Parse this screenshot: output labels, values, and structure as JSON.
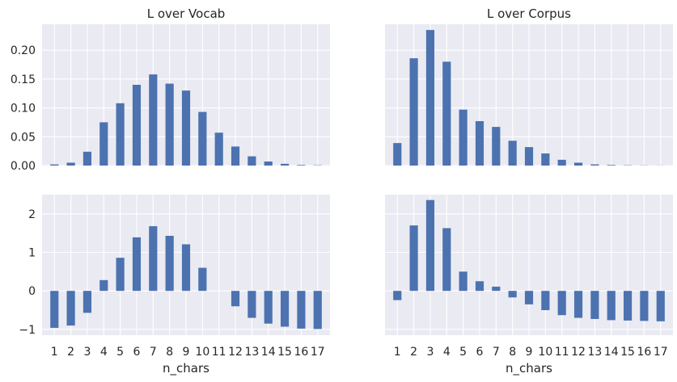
{
  "chart_data": [
    {
      "type": "bar",
      "title": "L over Vocab",
      "xlabel": "",
      "ylabel": "",
      "categories": [
        "1",
        "2",
        "3",
        "4",
        "5",
        "6",
        "7",
        "8",
        "9",
        "10",
        "11",
        "12",
        "13",
        "14",
        "15",
        "16",
        "17"
      ],
      "values": [
        0.002,
        0.005,
        0.024,
        0.075,
        0.108,
        0.14,
        0.158,
        0.142,
        0.13,
        0.093,
        0.057,
        0.033,
        0.016,
        0.007,
        0.003,
        0.001,
        0.0005
      ],
      "ylim": [
        0.0,
        0.245
      ],
      "yticks": [
        0.0,
        0.05,
        0.1,
        0.15,
        0.2
      ],
      "ytick_labels": [
        "0.00",
        "0.05",
        "0.10",
        "0.15",
        "0.20"
      ],
      "show_xticks": false,
      "show_yticks": true,
      "grid": true
    },
    {
      "type": "bar",
      "title": "L over Corpus",
      "xlabel": "",
      "ylabel": "",
      "categories": [
        "1",
        "2",
        "3",
        "4",
        "5",
        "6",
        "7",
        "8",
        "9",
        "10",
        "11",
        "12",
        "13",
        "14",
        "15",
        "16",
        "17"
      ],
      "values": [
        0.039,
        0.186,
        0.235,
        0.18,
        0.097,
        0.077,
        0.067,
        0.043,
        0.032,
        0.021,
        0.01,
        0.005,
        0.002,
        0.001,
        0.0005,
        0.0003,
        0.0002
      ],
      "ylim": [
        0.0,
        0.245
      ],
      "yticks": [
        0.0,
        0.05,
        0.1,
        0.15,
        0.2
      ],
      "ytick_labels": [
        "0.00",
        "0.05",
        "0.10",
        "0.15",
        "0.20"
      ],
      "show_xticks": false,
      "show_yticks": false,
      "grid": true
    },
    {
      "type": "bar",
      "title": "",
      "xlabel": "n_chars",
      "ylabel": "",
      "categories": [
        "1",
        "2",
        "3",
        "4",
        "5",
        "6",
        "7",
        "8",
        "9",
        "10",
        "11",
        "12",
        "13",
        "14",
        "15",
        "16",
        "17"
      ],
      "values": [
        -0.96,
        -0.9,
        -0.57,
        0.28,
        0.86,
        1.39,
        1.68,
        1.43,
        1.21,
        0.6,
        0.0,
        -0.4,
        -0.7,
        -0.85,
        -0.93,
        -0.98,
        -0.99
      ],
      "ylim": [
        -1.15,
        2.5
      ],
      "yticks": [
        -1,
        0,
        1,
        2
      ],
      "ytick_labels": [
        "−1",
        "0",
        "1",
        "2"
      ],
      "show_xticks": true,
      "show_yticks": true,
      "grid": true
    },
    {
      "type": "bar",
      "title": "",
      "xlabel": "n_chars",
      "ylabel": "",
      "categories": [
        "1",
        "2",
        "3",
        "4",
        "5",
        "6",
        "7",
        "8",
        "9",
        "10",
        "11",
        "12",
        "13",
        "14",
        "15",
        "16",
        "17"
      ],
      "values": [
        -0.24,
        1.7,
        2.36,
        1.63,
        0.5,
        0.25,
        0.11,
        -0.17,
        -0.35,
        -0.5,
        -0.63,
        -0.7,
        -0.73,
        -0.76,
        -0.77,
        -0.78,
        -0.79
      ],
      "ylim": [
        -1.15,
        2.5
      ],
      "yticks": [
        -1,
        0,
        1,
        2
      ],
      "ytick_labels": [
        "−1",
        "0",
        "1",
        "2"
      ],
      "show_xticks": true,
      "show_yticks": false,
      "grid": true
    }
  ],
  "colors": {
    "bar": "#4c72b0",
    "panel_background": "#eaeaf2",
    "grid": "#ffffff",
    "text": "#262626"
  }
}
